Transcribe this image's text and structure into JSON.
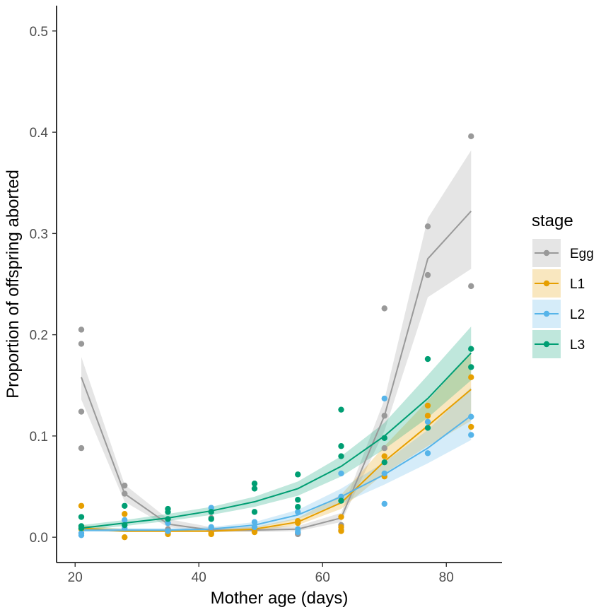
{
  "chart_data": {
    "type": "scatter",
    "title": "",
    "xlabel": "Mother age (days)",
    "ylabel": "Proportion of offspring aborted",
    "xlim": [
      17,
      89
    ],
    "ylim": [
      -0.025,
      0.525
    ],
    "xticks": [
      20,
      40,
      60,
      80
    ],
    "xtick_labels": [
      "20",
      "40",
      "60",
      "80"
    ],
    "yticks": [
      0.0,
      0.1,
      0.2,
      0.3,
      0.4,
      0.5
    ],
    "ytick_labels": [
      "0.0",
      "0.1",
      "0.2",
      "0.3",
      "0.4",
      "0.5"
    ],
    "grid": false,
    "legend": {
      "title": "stage",
      "position": "right"
    },
    "series": [
      {
        "name": "Egg",
        "color": "#999999",
        "points": [
          [
            21,
            0.205
          ],
          [
            21,
            0.191
          ],
          [
            21,
            0.124
          ],
          [
            21,
            0.088
          ],
          [
            28,
            0.051
          ],
          [
            28,
            0.043
          ],
          [
            35,
            0.008
          ],
          [
            35,
            0.004
          ],
          [
            42,
            0.019
          ],
          [
            42,
            0.008
          ],
          [
            49,
            0.01
          ],
          [
            49,
            0.006
          ],
          [
            56,
            0.004
          ],
          [
            56,
            0.003
          ],
          [
            63,
            0.012
          ],
          [
            63,
            0.007
          ],
          [
            70,
            0.226
          ],
          [
            70,
            0.12
          ],
          [
            70,
            0.088
          ],
          [
            77,
            0.307
          ],
          [
            77,
            0.259
          ],
          [
            84,
            0.396
          ],
          [
            84,
            0.248
          ]
        ],
        "fit_x": [
          21,
          28,
          35,
          42,
          49,
          56,
          63,
          70,
          77,
          84
        ],
        "fit_y": [
          0.158,
          0.043,
          0.013,
          0.007,
          0.007,
          0.008,
          0.019,
          0.12,
          0.275,
          0.322
        ],
        "fit_lower": [
          0.136,
          0.035,
          0.01,
          0.005,
          0.005,
          0.006,
          0.015,
          0.105,
          0.237,
          0.265
        ],
        "fit_upper": [
          0.178,
          0.052,
          0.018,
          0.01,
          0.01,
          0.011,
          0.024,
          0.136,
          0.315,
          0.382
        ]
      },
      {
        "name": "L1",
        "color": "#E69F00",
        "points": [
          [
            21,
            0.031
          ],
          [
            21,
            0.008
          ],
          [
            28,
            0.023
          ],
          [
            28,
            0.0
          ],
          [
            35,
            0.005
          ],
          [
            35,
            0.003
          ],
          [
            42,
            0.004
          ],
          [
            42,
            0.003
          ],
          [
            49,
            0.008
          ],
          [
            49,
            0.005
          ],
          [
            56,
            0.016
          ],
          [
            56,
            0.014
          ],
          [
            63,
            0.02
          ],
          [
            63,
            0.01
          ],
          [
            63,
            0.006
          ],
          [
            70,
            0.08
          ],
          [
            70,
            0.06
          ],
          [
            77,
            0.13
          ],
          [
            77,
            0.12
          ],
          [
            84,
            0.158
          ],
          [
            84,
            0.109
          ]
        ],
        "fit_x": [
          21,
          28,
          35,
          42,
          49,
          56,
          63,
          70,
          77,
          84
        ],
        "fit_y": [
          0.009,
          0.006,
          0.006,
          0.006,
          0.008,
          0.015,
          0.034,
          0.075,
          0.11,
          0.146
        ],
        "fit_lower": [
          0.007,
          0.005,
          0.005,
          0.005,
          0.006,
          0.012,
          0.028,
          0.063,
          0.09,
          0.115
        ],
        "fit_upper": [
          0.012,
          0.008,
          0.007,
          0.008,
          0.01,
          0.019,
          0.042,
          0.09,
          0.135,
          0.182
        ]
      },
      {
        "name": "L2",
        "color": "#56B4E9",
        "points": [
          [
            21,
            0.004
          ],
          [
            21,
            0.002
          ],
          [
            28,
            0.017
          ],
          [
            28,
            0.009
          ],
          [
            35,
            0.014
          ],
          [
            35,
            0.006
          ],
          [
            42,
            0.029
          ],
          [
            42,
            0.01
          ],
          [
            49,
            0.015
          ],
          [
            49,
            0.01
          ],
          [
            56,
            0.025
          ],
          [
            56,
            0.008
          ],
          [
            56,
            0.005
          ],
          [
            63,
            0.063
          ],
          [
            63,
            0.04
          ],
          [
            70,
            0.137
          ],
          [
            70,
            0.063
          ],
          [
            70,
            0.033
          ],
          [
            77,
            0.114
          ],
          [
            77,
            0.083
          ],
          [
            84,
            0.119
          ],
          [
            84,
            0.101
          ]
        ],
        "fit_x": [
          21,
          28,
          35,
          42,
          49,
          56,
          63,
          70,
          77,
          84
        ],
        "fit_y": [
          0.007,
          0.007,
          0.007,
          0.008,
          0.012,
          0.022,
          0.04,
          0.062,
          0.088,
          0.12
        ],
        "fit_lower": [
          0.005,
          0.005,
          0.006,
          0.006,
          0.009,
          0.018,
          0.033,
          0.052,
          0.073,
          0.096
        ],
        "fit_upper": [
          0.009,
          0.009,
          0.009,
          0.01,
          0.015,
          0.027,
          0.048,
          0.074,
          0.106,
          0.148
        ]
      },
      {
        "name": "L3",
        "color": "#009E73",
        "points": [
          [
            21,
            0.02
          ],
          [
            21,
            0.011
          ],
          [
            21,
            0.009
          ],
          [
            28,
            0.031
          ],
          [
            28,
            0.012
          ],
          [
            35,
            0.028
          ],
          [
            35,
            0.025
          ],
          [
            35,
            0.018
          ],
          [
            42,
            0.025
          ],
          [
            42,
            0.018
          ],
          [
            49,
            0.053
          ],
          [
            49,
            0.048
          ],
          [
            49,
            0.025
          ],
          [
            56,
            0.062
          ],
          [
            56,
            0.037
          ],
          [
            56,
            0.03
          ],
          [
            63,
            0.126
          ],
          [
            63,
            0.09
          ],
          [
            63,
            0.08
          ],
          [
            63,
            0.036
          ],
          [
            70,
            0.098
          ],
          [
            70,
            0.074
          ],
          [
            77,
            0.176
          ],
          [
            77,
            0.108
          ],
          [
            84,
            0.186
          ],
          [
            84,
            0.168
          ]
        ],
        "fit_x": [
          21,
          28,
          35,
          42,
          49,
          56,
          63,
          70,
          77,
          84
        ],
        "fit_y": [
          0.009,
          0.014,
          0.019,
          0.026,
          0.035,
          0.048,
          0.07,
          0.1,
          0.137,
          0.182
        ],
        "fit_lower": [
          0.007,
          0.011,
          0.016,
          0.022,
          0.03,
          0.041,
          0.06,
          0.087,
          0.118,
          0.155
        ],
        "fit_upper": [
          0.012,
          0.017,
          0.023,
          0.03,
          0.04,
          0.055,
          0.08,
          0.113,
          0.16,
          0.208
        ]
      }
    ]
  }
}
